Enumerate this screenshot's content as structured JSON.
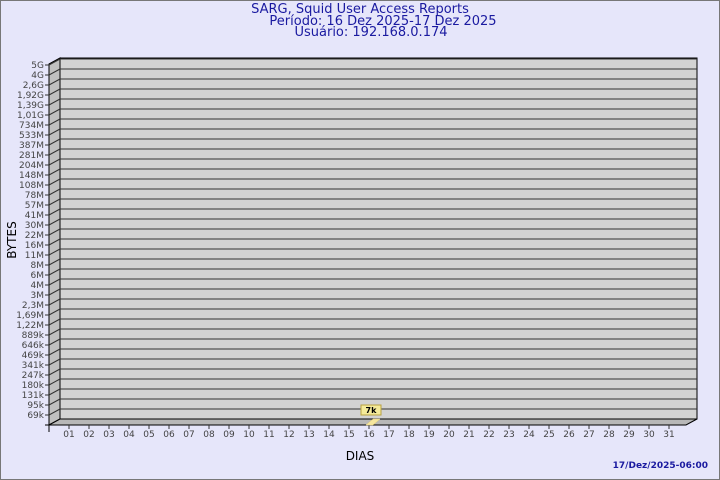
{
  "header": {
    "title": "SARG, Squid User Access Reports",
    "period": "Período: 16 Dez 2025-17 Dez 2025",
    "user": "Usuário: 192.168.0.174"
  },
  "footer": {
    "timestamp": "17/Dez/2025-06:00"
  },
  "chart_data": {
    "type": "bar",
    "xlabel": "DIAS",
    "ylabel": "BYTES",
    "categories": [
      "01",
      "02",
      "03",
      "04",
      "05",
      "06",
      "07",
      "08",
      "09",
      "10",
      "11",
      "12",
      "13",
      "14",
      "15",
      "16",
      "17",
      "18",
      "19",
      "20",
      "21",
      "22",
      "23",
      "24",
      "25",
      "26",
      "27",
      "28",
      "29",
      "30",
      "31"
    ],
    "y_scale": "log",
    "y_ticks": [
      "5G",
      "4G",
      "2,6G",
      "1,92G",
      "1,39G",
      "1,01G",
      "734M",
      "533M",
      "387M",
      "281M",
      "204M",
      "148M",
      "108M",
      "78M",
      "57M",
      "41M",
      "30M",
      "22M",
      "16M",
      "11M",
      "8M",
      "6M",
      "4M",
      "3M",
      "2,3M",
      "1,69M",
      "1,22M",
      "889k",
      "646k",
      "469k",
      "341k",
      "247k",
      "180k",
      "131k",
      "95k",
      "69k"
    ],
    "grid": true,
    "series": [
      {
        "points": [
          {
            "x": "16",
            "value": 7000,
            "label": "7k"
          }
        ]
      }
    ],
    "colors": {
      "bar": "#f5e6a0",
      "label_bg": "#f5eb9a",
      "plot": "#d3d3d3",
      "background": "#e6e6fa",
      "title": "#1a1aa0"
    }
  }
}
